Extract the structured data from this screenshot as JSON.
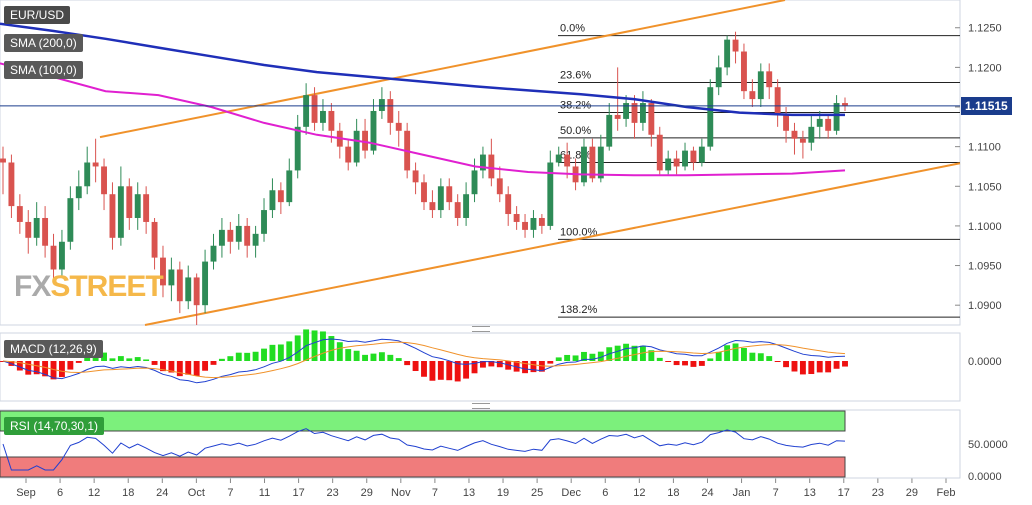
{
  "symbol": "EUR/USD",
  "indicators": {
    "sma200": "SMA (200,0)",
    "sma100": "SMA (100,0)",
    "macd": "MACD (12,26,9)",
    "rsi": "RSI (14,70,30,1)"
  },
  "current_price": "1.11515",
  "colors": {
    "candle_up": "#2e8b57",
    "candle_down": "#d9534f",
    "sma200": "#1f2fb8",
    "sma100": "#e020d0",
    "trendline": "#f0922b",
    "macd_line": "#2040d0",
    "signal_line": "#f0922b",
    "hist_up": "#22dd22",
    "hist_down": "#ee1111",
    "rsi_line": "#2040d0",
    "rsi_overbought": "#7cf07c",
    "rsi_oversold": "#f07c7c"
  },
  "watermark": {
    "part1": "FX",
    "part2": "STREET"
  },
  "chart_data": {
    "type": "candlestick",
    "price_axis": {
      "ticks": [
        "1.1250",
        "1.1200",
        "1.1150",
        "1.1100",
        "1.1050",
        "1.1000",
        "1.0950",
        "1.0900"
      ],
      "ylim": [
        1.0875,
        1.1285
      ]
    },
    "x_ticks": [
      "Sep",
      "6",
      "12",
      "18",
      "24",
      "Oct",
      "7",
      "11",
      "17",
      "23",
      "29",
      "Nov",
      "7",
      "13",
      "19",
      "25",
      "Dec",
      "6",
      "12",
      "18",
      "24",
      "Jan",
      "7",
      "13",
      "17",
      "23",
      "29",
      "Feb"
    ],
    "fibonacci": [
      {
        "label": "0.0%",
        "value": 1.124
      },
      {
        "label": "23.6%",
        "value": 1.1181
      },
      {
        "label": "38.2%",
        "value": 1.1143
      },
      {
        "label": "50.0%",
        "value": 1.1111
      },
      {
        "label": "61.8%",
        "value": 1.108
      },
      {
        "label": "100.0%",
        "value": 1.0983
      },
      {
        "label": "138.2%",
        "value": 1.0885
      }
    ],
    "candles": [
      [
        1.1085,
        1.108,
        1.11,
        1.104
      ],
      [
        1.108,
        1.1025,
        1.109,
        1.101
      ],
      [
        1.1025,
        1.1005,
        1.104,
        1.099
      ],
      [
        1.1005,
        1.0985,
        1.102,
        1.0965
      ],
      [
        1.0985,
        1.101,
        1.103,
        1.0975
      ],
      [
        1.101,
        1.0975,
        1.1025,
        1.096
      ],
      [
        1.0975,
        1.0945,
        1.099,
        1.093
      ],
      [
        1.0945,
        1.098,
        1.0995,
        1.0935
      ],
      [
        1.098,
        1.1035,
        1.105,
        1.097
      ],
      [
        1.1035,
        1.105,
        1.107,
        1.102
      ],
      [
        1.105,
        1.108,
        1.11,
        1.104
      ],
      [
        1.108,
        1.1075,
        1.111,
        1.1055
      ],
      [
        1.1075,
        1.104,
        1.1085,
        1.102
      ],
      [
        1.104,
        1.0985,
        1.1055,
        1.097
      ],
      [
        1.0985,
        1.105,
        1.1075,
        1.0975
      ],
      [
        1.105,
        1.101,
        1.106,
        1.0995
      ],
      [
        1.101,
        1.104,
        1.1055,
        1.0995
      ],
      [
        1.104,
        1.1005,
        1.105,
        1.099
      ],
      [
        1.1005,
        1.096,
        1.101,
        1.0945
      ],
      [
        1.096,
        1.0925,
        1.0975,
        1.091
      ],
      [
        1.0925,
        1.0945,
        1.096,
        1.0905
      ],
      [
        1.0945,
        1.0905,
        1.0955,
        1.089
      ],
      [
        1.0905,
        1.0935,
        1.095,
        1.0895
      ],
      [
        1.0935,
        1.09,
        1.094,
        1.0875
      ],
      [
        1.09,
        1.0955,
        1.097,
        1.089
      ],
      [
        1.0955,
        1.0975,
        1.099,
        1.0945
      ],
      [
        1.0975,
        1.0995,
        1.101,
        1.096
      ],
      [
        1.0995,
        1.098,
        1.1005,
        1.0965
      ],
      [
        1.098,
        1.1,
        1.1015,
        1.097
      ],
      [
        1.1,
        1.0975,
        1.101,
        1.096
      ],
      [
        1.0975,
        1.099,
        1.1,
        1.096
      ],
      [
        1.099,
        1.102,
        1.1035,
        1.098
      ],
      [
        1.102,
        1.1045,
        1.106,
        1.101
      ],
      [
        1.1045,
        1.103,
        1.1055,
        1.1015
      ],
      [
        1.103,
        1.107,
        1.1085,
        1.1025
      ],
      [
        1.107,
        1.1125,
        1.114,
        1.106
      ],
      [
        1.1125,
        1.1165,
        1.118,
        1.1115
      ],
      [
        1.1165,
        1.113,
        1.1175,
        1.112
      ],
      [
        1.113,
        1.1145,
        1.116,
        1.112
      ],
      [
        1.1145,
        1.112,
        1.1155,
        1.1105
      ],
      [
        1.112,
        1.11,
        1.113,
        1.1085
      ],
      [
        1.11,
        1.108,
        1.111,
        1.107
      ],
      [
        1.108,
        1.112,
        1.1135,
        1.1075
      ],
      [
        1.112,
        1.1095,
        1.1135,
        1.1085
      ],
      [
        1.1095,
        1.1145,
        1.116,
        1.109
      ],
      [
        1.1145,
        1.116,
        1.1175,
        1.1135
      ],
      [
        1.116,
        1.113,
        1.117,
        1.1115
      ],
      [
        1.113,
        1.112,
        1.1145,
        1.11
      ],
      [
        1.112,
        1.107,
        1.113,
        1.106
      ],
      [
        1.107,
        1.1055,
        1.108,
        1.104
      ],
      [
        1.1055,
        1.103,
        1.1065,
        1.102
      ],
      [
        1.103,
        1.102,
        1.1045,
        1.101
      ],
      [
        1.102,
        1.105,
        1.106,
        1.101
      ],
      [
        1.105,
        1.103,
        1.106,
        1.102
      ],
      [
        1.103,
        1.101,
        1.104,
        1.1
      ],
      [
        1.101,
        1.104,
        1.1055,
        1.1
      ],
      [
        1.104,
        1.107,
        1.1085,
        1.103
      ],
      [
        1.107,
        1.109,
        1.11,
        1.106
      ],
      [
        1.109,
        1.106,
        1.111,
        1.105
      ],
      [
        1.106,
        1.104,
        1.1075,
        1.103
      ],
      [
        1.104,
        1.1015,
        1.105,
        1.1
      ],
      [
        1.1015,
        1.1005,
        1.1025,
        1.0995
      ],
      [
        1.1005,
        1.0995,
        1.1015,
        1.0985
      ],
      [
        1.0995,
        1.101,
        1.102,
        1.0985
      ],
      [
        1.101,
        1.1,
        1.1015,
        1.099
      ],
      [
        1.1,
        1.108,
        1.1095,
        1.0995
      ],
      [
        1.108,
        1.109,
        1.11,
        1.1075
      ],
      [
        1.109,
        1.1075,
        1.1105,
        1.106
      ],
      [
        1.1075,
        1.1055,
        1.1085,
        1.1045
      ],
      [
        1.1055,
        1.11,
        1.111,
        1.105
      ],
      [
        1.11,
        1.106,
        1.111,
        1.1055
      ],
      [
        1.106,
        1.11,
        1.1115,
        1.1055
      ],
      [
        1.11,
        1.114,
        1.1155,
        1.1095
      ],
      [
        1.114,
        1.1135,
        1.12,
        1.112
      ],
      [
        1.1135,
        1.1155,
        1.1165,
        1.1125
      ],
      [
        1.1155,
        1.113,
        1.1165,
        1.111
      ],
      [
        1.113,
        1.1155,
        1.117,
        1.112
      ],
      [
        1.1155,
        1.1115,
        1.116,
        1.11
      ],
      [
        1.1115,
        1.107,
        1.1125,
        1.1065
      ],
      [
        1.107,
        1.1085,
        1.1095,
        1.1065
      ],
      [
        1.1085,
        1.1075,
        1.1095,
        1.1065
      ],
      [
        1.1075,
        1.1095,
        1.1105,
        1.107
      ],
      [
        1.1095,
        1.108,
        1.11,
        1.107
      ],
      [
        1.108,
        1.11,
        1.111,
        1.1075
      ],
      [
        1.11,
        1.1175,
        1.1185,
        1.1095
      ],
      [
        1.1175,
        1.12,
        1.1215,
        1.1165
      ],
      [
        1.12,
        1.1235,
        1.124,
        1.119
      ],
      [
        1.1235,
        1.122,
        1.1245,
        1.1205
      ],
      [
        1.122,
        1.117,
        1.123,
        1.116
      ],
      [
        1.117,
        1.116,
        1.1185,
        1.115
      ],
      [
        1.116,
        1.1195,
        1.1205,
        1.115
      ],
      [
        1.1195,
        1.1175,
        1.1205,
        1.116
      ],
      [
        1.1175,
        1.114,
        1.1185,
        1.1125
      ],
      [
        1.114,
        1.112,
        1.115,
        1.1105
      ],
      [
        1.112,
        1.111,
        1.113,
        1.109
      ],
      [
        1.111,
        1.1105,
        1.112,
        1.1085
      ],
      [
        1.1105,
        1.1125,
        1.114,
        1.1095
      ],
      [
        1.1125,
        1.1135,
        1.1145,
        1.111
      ],
      [
        1.1135,
        1.112,
        1.114,
        1.111
      ],
      [
        1.112,
        1.1155,
        1.1165,
        1.1115
      ],
      [
        1.1155,
        1.1152,
        1.1162,
        1.1145
      ]
    ],
    "sma200": [
      1.1255,
      1.1246,
      1.1236,
      1.1225,
      1.1214,
      1.1203,
      1.1194,
      1.1188,
      1.1182,
      1.1176,
      1.1171,
      1.1166,
      1.116,
      1.115,
      1.1143,
      1.114,
      1.114
    ],
    "sma100": [
      1.1205,
      1.1188,
      1.117,
      1.1165,
      1.115,
      1.113,
      1.1115,
      1.1105,
      1.109,
      1.1075,
      1.1068,
      1.1065,
      1.1064,
      1.1064,
      1.1065,
      1.1066,
      1.107
    ],
    "rsi_axis": {
      "ticks": [
        "50.0000",
        "0.0000"
      ]
    },
    "macd_axis": {
      "ticks": [
        "0.0000"
      ]
    }
  }
}
